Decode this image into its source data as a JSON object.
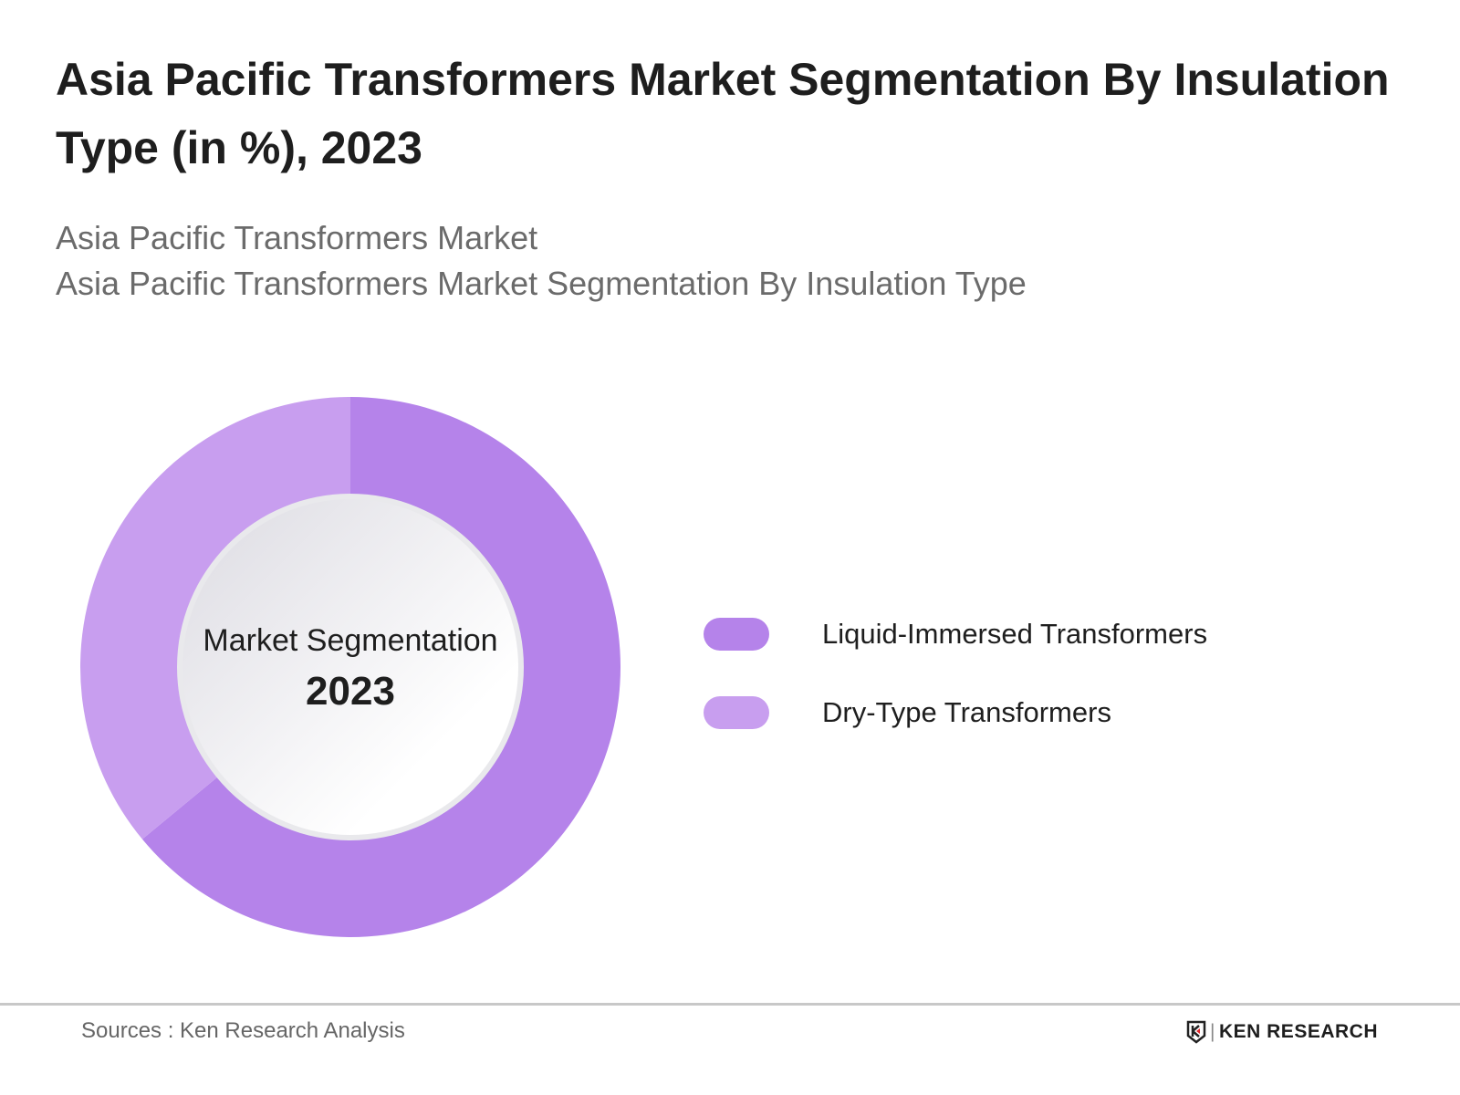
{
  "header": {
    "title": "Asia Pacific Transformers Market Segmentation By Insulation Type (in %), 2023",
    "subtitle1": "Asia Pacific Transformers Market",
    "subtitle2": "Asia Pacific Transformers Market Segmentation By Insulation Type"
  },
  "chart_data": {
    "type": "pie",
    "variant": "donut",
    "center_label": "Market Segmentation",
    "center_year": "2023",
    "legend_placement": "right",
    "series": [
      {
        "name": "Liquid-Immersed Transformers",
        "value": 64,
        "color": "#b583ea"
      },
      {
        "name": "Dry-Type Transformers",
        "value": 36,
        "color": "#c89eef"
      }
    ]
  },
  "footer": {
    "source": "Sources : Ken Research Analysis",
    "logo_text": "KEN RESEARCH"
  }
}
